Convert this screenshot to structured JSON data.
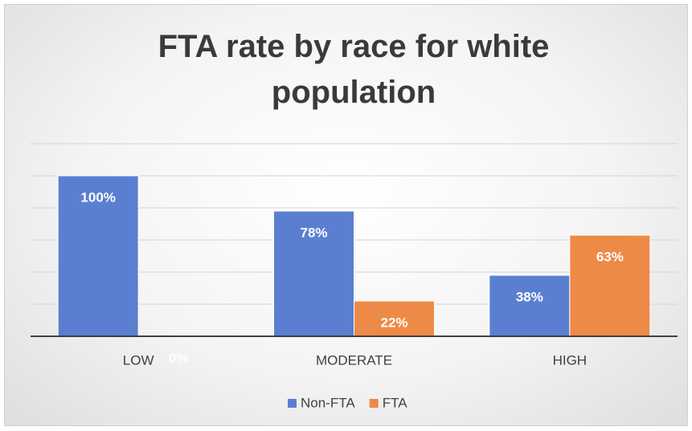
{
  "chart_data": {
    "type": "bar",
    "title": "FTA rate by race for white population",
    "categories": [
      "LOW",
      "MODERATE",
      "HIGH"
    ],
    "series": [
      {
        "name": "Non-FTA",
        "color": "#5b7fd0",
        "values": [
          100,
          78,
          38
        ],
        "value_labels": [
          "100%",
          "78%",
          "38%"
        ]
      },
      {
        "name": "FTA",
        "color": "#ee8a47",
        "values": [
          0,
          22,
          63
        ],
        "value_labels": [
          "0%",
          "22%",
          "63%"
        ]
      }
    ],
    "ylim": [
      0,
      120
    ],
    "yticks": [
      0,
      20,
      40,
      60,
      80,
      100,
      120
    ],
    "grid": true,
    "legend": "bottom"
  }
}
